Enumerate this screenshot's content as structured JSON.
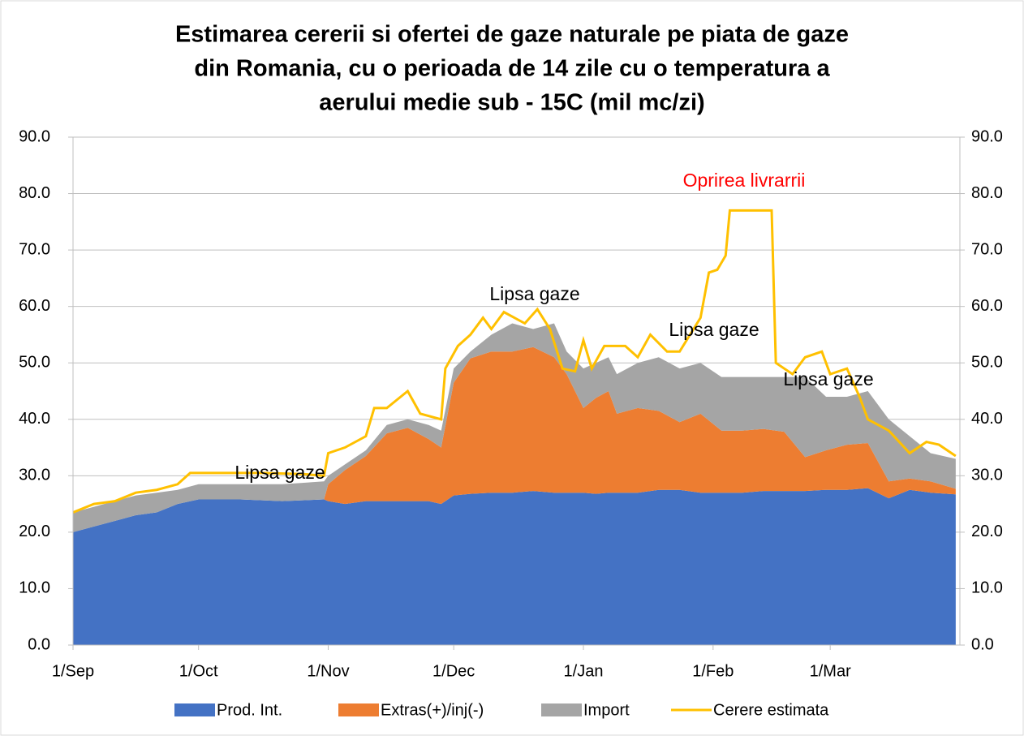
{
  "chart_data": {
    "type": "stacked-area-line",
    "title": [
      "Estimarea cererii si ofertei de gaze naturale pe piata de gaze",
      "din Romania, cu o perioada de 14 zile cu o temperatura a",
      "aerului medie sub - 15C (mil mc/zi)"
    ],
    "x": [
      0,
      5,
      10,
      15,
      20,
      25,
      30,
      40,
      50,
      60,
      61,
      65,
      70,
      75,
      80,
      85,
      88,
      91,
      95,
      100,
      105,
      110,
      115,
      118,
      122,
      125,
      128,
      130,
      135,
      140,
      145,
      150,
      155,
      160,
      165,
      170,
      175,
      180,
      185,
      190,
      195,
      200,
      205,
      211
    ],
    "xlim": [
      0,
      212
    ],
    "xticks": [
      {
        "value": 0,
        "label": "1/Sep"
      },
      {
        "value": 30,
        "label": "1/Oct"
      },
      {
        "value": 61,
        "label": "1/Nov"
      },
      {
        "value": 91,
        "label": "1/Dec"
      },
      {
        "value": 122,
        "label": "1/Jan"
      },
      {
        "value": 153,
        "label": "1/Feb"
      },
      {
        "value": 181,
        "label": "1/Mar"
      }
    ],
    "ylim": [
      0,
      90
    ],
    "yticks": [
      {
        "value": 0,
        "label": "0.0"
      },
      {
        "value": 10,
        "label": "10.0"
      },
      {
        "value": 20,
        "label": "20.0"
      },
      {
        "value": 30,
        "label": "30.0"
      },
      {
        "value": 40,
        "label": "40.0"
      },
      {
        "value": 50,
        "label": "50.0"
      },
      {
        "value": 60,
        "label": "60.0"
      },
      {
        "value": 70,
        "label": "70.0"
      },
      {
        "value": 80,
        "label": "80.0"
      },
      {
        "value": 90,
        "label": "90.0"
      }
    ],
    "y2lim": [
      0,
      90
    ],
    "y2ticks": [
      {
        "value": 0,
        "label": "0.0"
      },
      {
        "value": 10,
        "label": "10.0"
      },
      {
        "value": 20,
        "label": "20.0"
      },
      {
        "value": 30,
        "label": "30.0"
      },
      {
        "value": 40,
        "label": "40.0"
      },
      {
        "value": 50,
        "label": "50.0"
      },
      {
        "value": 60,
        "label": "60.0"
      },
      {
        "value": 70,
        "label": "70.0"
      },
      {
        "value": 80,
        "label": "80.0"
      },
      {
        "value": 90,
        "label": "90.0"
      }
    ],
    "grid": true,
    "series": [
      {
        "name": "Prod. Int.",
        "color": "#4472c4",
        "values": [
          20,
          21,
          22,
          23,
          23.5,
          25,
          25.8,
          25.8,
          25.5,
          25.8,
          25.5,
          25,
          25.5,
          25.5,
          25.5,
          25.5,
          25,
          26.5,
          26.8,
          27,
          27,
          27.3,
          27,
          27,
          27,
          26.8,
          27,
          27,
          27,
          27.5,
          27.5,
          27,
          27,
          27,
          27.3,
          27.3,
          27.3,
          27.5,
          27.5,
          27.8,
          26,
          27.5,
          27,
          26.7
        ]
      },
      {
        "name": "Extras(+)/inj(-)",
        "color": "#ed7d31",
        "values": [
          0,
          0,
          0,
          0,
          0,
          0,
          0,
          0,
          0,
          0,
          3,
          6,
          8,
          12,
          13,
          11,
          10,
          20,
          24,
          25,
          25,
          25.5,
          24,
          21,
          15,
          17,
          18,
          14,
          15,
          14,
          12,
          14,
          11,
          11,
          11,
          10.5,
          6,
          7,
          8,
          8,
          3,
          2,
          2,
          1
        ]
      },
      {
        "name": "Import",
        "color": "#a5a5a5",
        "values": [
          3.5,
          3.5,
          3.5,
          3.5,
          3.5,
          2.5,
          2.7,
          2.7,
          3,
          3.2,
          1.5,
          1,
          1,
          1.5,
          1.5,
          2.5,
          3,
          2.5,
          1.2,
          3,
          5,
          3.2,
          6,
          4,
          7,
          6.2,
          6,
          7,
          8,
          9.5,
          9.5,
          9,
          9.5,
          9.5,
          9.2,
          9.7,
          14.2,
          9.5,
          8.5,
          9.2,
          11,
          7.5,
          5,
          5.3
        ]
      },
      {
        "name": "Cerere estimata",
        "color": "#ffc000",
        "x": [
          0,
          5,
          10,
          15,
          20,
          25,
          28,
          35,
          45,
          55,
          60,
          61,
          65,
          70,
          72,
          75,
          80,
          83,
          88,
          89,
          92,
          95,
          98,
          100,
          103,
          108,
          111,
          114,
          117,
          120,
          122,
          124,
          127,
          132,
          135,
          138,
          142,
          145,
          150,
          152,
          154,
          156,
          157,
          167,
          168,
          172,
          175,
          179,
          181,
          185,
          188,
          190,
          195,
          200,
          204,
          207,
          211
        ],
        "values": [
          23.5,
          25,
          25.5,
          27,
          27.5,
          28.5,
          30.5,
          30.5,
          30.5,
          30.3,
          30,
          34,
          35,
          37,
          42,
          42,
          45,
          41,
          40,
          49,
          53,
          55,
          58,
          56,
          59,
          57,
          59.5,
          56,
          49,
          48.5,
          54,
          49,
          53,
          53,
          51,
          55,
          52,
          52,
          58,
          66,
          66.5,
          69,
          77,
          77,
          50,
          48,
          51,
          52,
          48,
          49,
          44,
          40,
          38,
          34,
          36,
          35.5,
          33.5
        ]
      }
    ],
    "annotations": [
      {
        "text": "Oprirea livrarrii",
        "color": "#ff0000"
      },
      {
        "text": "Lipsa gaze",
        "color": "#000000"
      },
      {
        "text": "Lipsa gaze",
        "color": "#000000"
      },
      {
        "text": "Lipsa gaze",
        "color": "#000000"
      },
      {
        "text": "Lipsa gaze",
        "color": "#000000"
      }
    ]
  }
}
